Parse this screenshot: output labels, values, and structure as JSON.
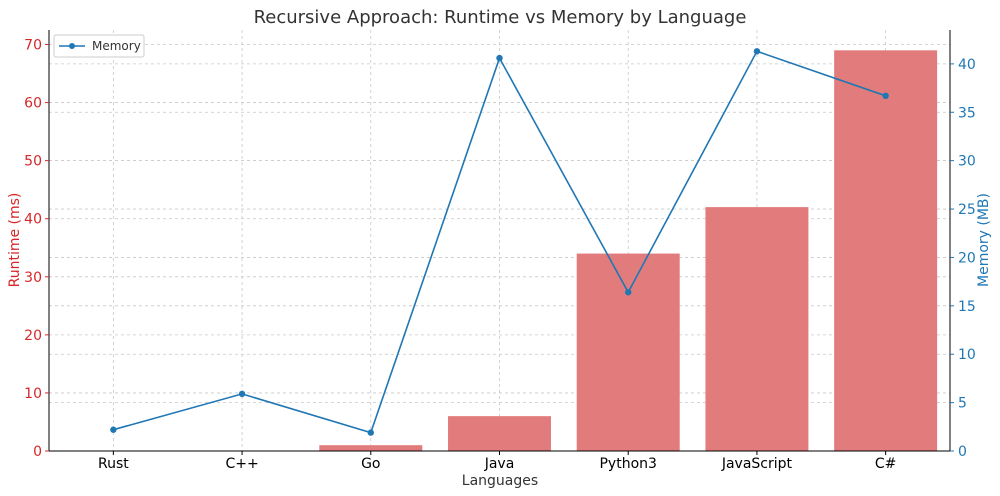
{
  "chart_data": {
    "type": "bar",
    "title": "Recursive Approach: Runtime vs Memory by Language",
    "xlabel": "Languages",
    "ylabel": "Runtime (ms)",
    "y2label": "Memory (MB)",
    "categories": [
      "Rust",
      "C++",
      "Go",
      "Java",
      "Python3",
      "JavaScript",
      "C#"
    ],
    "series": [
      {
        "name": "",
        "type": "bar",
        "axis": "left",
        "color": "#e27c7c",
        "values": [
          0,
          0,
          1,
          6,
          34,
          42,
          69
        ]
      },
      {
        "name": "Memory",
        "type": "line",
        "axis": "right",
        "color": "#1f77b4",
        "values": [
          2.2,
          5.9,
          1.9,
          40.6,
          16.4,
          41.3,
          36.7
        ]
      }
    ],
    "ylim": [
      0,
      72.5
    ],
    "y2lim": [
      0,
      43.5
    ],
    "yticks": [
      0,
      10,
      20,
      30,
      40,
      50,
      60,
      70
    ],
    "y2ticks": [
      0,
      5,
      10,
      15,
      20,
      25,
      30,
      35,
      40
    ],
    "left_axis_color": "#d62728",
    "right_axis_color": "#1f77b4",
    "grid": true,
    "legend_position": "top-left"
  }
}
